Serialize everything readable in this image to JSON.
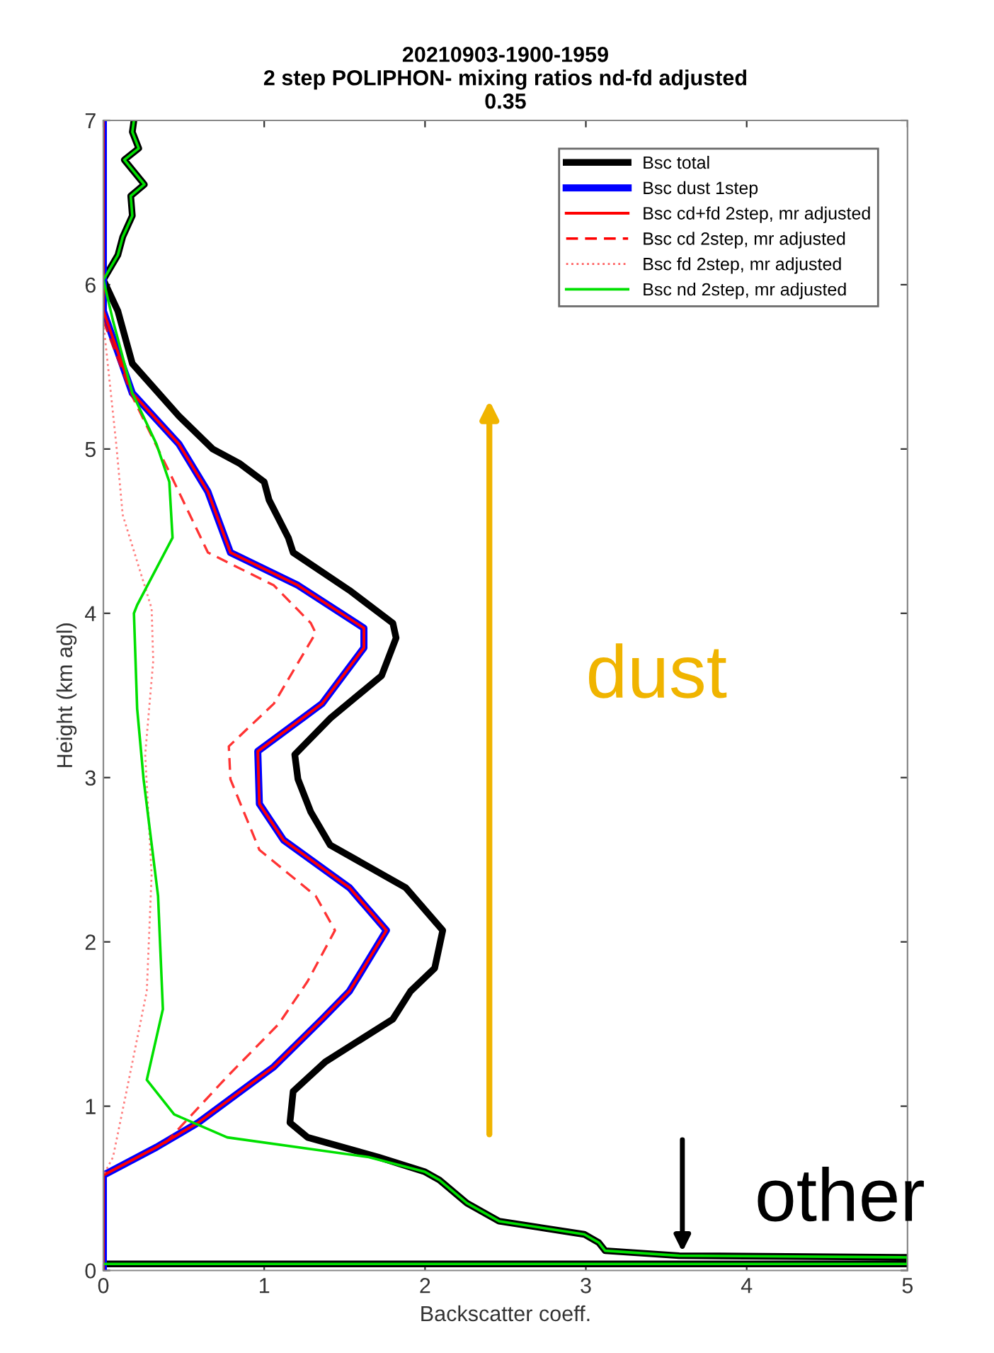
{
  "chart_data": {
    "type": "line",
    "title": "20210903-1900-1959\n2 step POLIPHON- mixing ratios nd-fd adjusted\n0.35",
    "xlabel": "Backscatter coeff.",
    "ylabel": "Height (km agl)",
    "xlim": [
      0,
      5
    ],
    "ylim": [
      0,
      7
    ],
    "xticks": [
      0,
      1,
      2,
      3,
      4,
      5
    ],
    "yticks": [
      0,
      1,
      2,
      3,
      4,
      5,
      6,
      7
    ],
    "grid": false,
    "legend": "top right",
    "marker": "none",
    "series": [
      {
        "name": "Bsc total",
        "color": "#000000",
        "line_style": "solid",
        "x": [
          0.19,
          0.18,
          0.22,
          0.13,
          0.255,
          0.17,
          0.18,
          0.12,
          0.09,
          0,
          0.09,
          0.18,
          0.47,
          0.68,
          0.85,
          1.0,
          1.03,
          1.15,
          1.18,
          1.53,
          1.8,
          1.82,
          1.73,
          1.41,
          1.19,
          1.21,
          1.29,
          1.41,
          1.88,
          2.11,
          2.06,
          1.91,
          1.8,
          1.38,
          1.18,
          1.16,
          1.27,
          1.71,
          2.0,
          2.09,
          2.26,
          2.46,
          2.99,
          3.08,
          3.12,
          3.58,
          5.0,
          5.0,
          0
        ],
        "values": [
          7.0,
          6.93,
          6.83,
          6.76,
          6.61,
          6.54,
          6.42,
          6.29,
          6.18,
          6.03,
          5.84,
          5.52,
          5.2,
          5.0,
          4.91,
          4.8,
          4.69,
          4.46,
          4.37,
          4.14,
          3.94,
          3.85,
          3.62,
          3.36,
          3.14,
          2.99,
          2.79,
          2.59,
          2.33,
          2.07,
          1.84,
          1.7,
          1.53,
          1.27,
          1.09,
          0.9,
          0.81,
          0.69,
          0.6,
          0.55,
          0.41,
          0.3,
          0.22,
          0.17,
          0.12,
          0.09,
          0.08,
          0.04,
          0.04
        ]
      },
      {
        "name": "Bsc dust 1step",
        "color": "#0000ff",
        "line_style": "solid",
        "x": [
          0,
          0,
          0.18,
          0.47,
          0.65,
          0.79,
          1.21,
          1.62,
          1.62,
          1.36,
          0.96,
          0.97,
          1.12,
          1.53,
          1.76,
          1.53,
          1.36,
          1.06,
          0.59,
          0.33,
          0,
          0
        ],
        "values": [
          7.0,
          5.84,
          5.34,
          5.03,
          4.74,
          4.37,
          4.17,
          3.91,
          3.79,
          3.45,
          3.16,
          2.84,
          2.62,
          2.33,
          2.07,
          1.7,
          1.53,
          1.24,
          0.9,
          0.75,
          0.58,
          0.0
        ]
      },
      {
        "name": "Bsc cd+fd 2step, mr adjusted",
        "color": "#ff0000",
        "line_style": "solid",
        "x": [
          0,
          0,
          0.18,
          0.47,
          0.65,
          0.79,
          1.21,
          1.62,
          1.62,
          1.36,
          0.96,
          0.97,
          1.12,
          1.53,
          1.76,
          1.53,
          1.36,
          1.06,
          0.59,
          0.33,
          0,
          0
        ],
        "values": [
          7.0,
          5.84,
          5.34,
          5.03,
          4.74,
          4.37,
          4.17,
          3.91,
          3.79,
          3.45,
          3.16,
          2.84,
          2.62,
          2.33,
          2.07,
          1.7,
          1.53,
          1.24,
          0.9,
          0.75,
          0.58,
          0.0
        ]
      },
      {
        "name": "Bsc cd 2step, mr adjusted",
        "color": "#ff0000",
        "line_style": "dashed",
        "x": [
          0,
          0.18,
          0.41,
          0.65,
          1.06,
          1.29,
          1.32,
          1.06,
          0.78,
          0.79,
          0.97,
          1.32,
          1.44,
          1.27,
          1.09,
          0.77,
          0.39,
          0
        ],
        "values": [
          5.78,
          5.32,
          4.86,
          4.37,
          4.17,
          3.94,
          3.88,
          3.45,
          3.19,
          2.99,
          2.56,
          2.28,
          2.07,
          1.76,
          1.5,
          1.18,
          0.78,
          0.58
        ]
      },
      {
        "name": "Bsc fd 2step, mr adjusted",
        "color": "#ff6060",
        "line_style": "dotted",
        "x": [
          0,
          0.08,
          0.12,
          0.3,
          0.31,
          0.26,
          0.3,
          0.27,
          0.15,
          0.06,
          0
        ],
        "values": [
          5.77,
          5.03,
          4.6,
          4.03,
          3.71,
          3.14,
          2.41,
          1.7,
          1.12,
          0.69,
          0.58
        ]
      },
      {
        "name": "Bsc nd 2step, mr adjusted",
        "color": "#00e000",
        "line_style": "solid",
        "x": [
          0.19,
          0.18,
          0.22,
          0.13,
          0.255,
          0.17,
          0.18,
          0.12,
          0.09,
          0,
          0.06,
          0.18,
          0.33,
          0.41,
          0.43,
          0.21,
          0.19,
          0.21,
          0.25,
          0.34,
          0.37,
          0.27,
          0.44,
          0.77,
          1.65,
          2.0,
          2.09,
          2.26,
          2.46,
          2.99,
          3.08,
          3.12,
          3.58,
          5.0,
          5.0,
          0
        ],
        "values": [
          7.0,
          6.93,
          6.83,
          6.76,
          6.61,
          6.54,
          6.42,
          6.29,
          6.18,
          6.03,
          5.78,
          5.34,
          5.03,
          4.8,
          4.46,
          4.05,
          4.0,
          3.42,
          2.99,
          2.28,
          1.59,
          1.16,
          0.95,
          0.81,
          0.69,
          0.6,
          0.55,
          0.41,
          0.3,
          0.22,
          0.17,
          0.12,
          0.09,
          0.08,
          0.04,
          0.04
        ]
      }
    ],
    "annotations": [
      "dust",
      {
        "text": "other",
        "x": 3.6,
        "y": 0.09
      }
    ]
  }
}
